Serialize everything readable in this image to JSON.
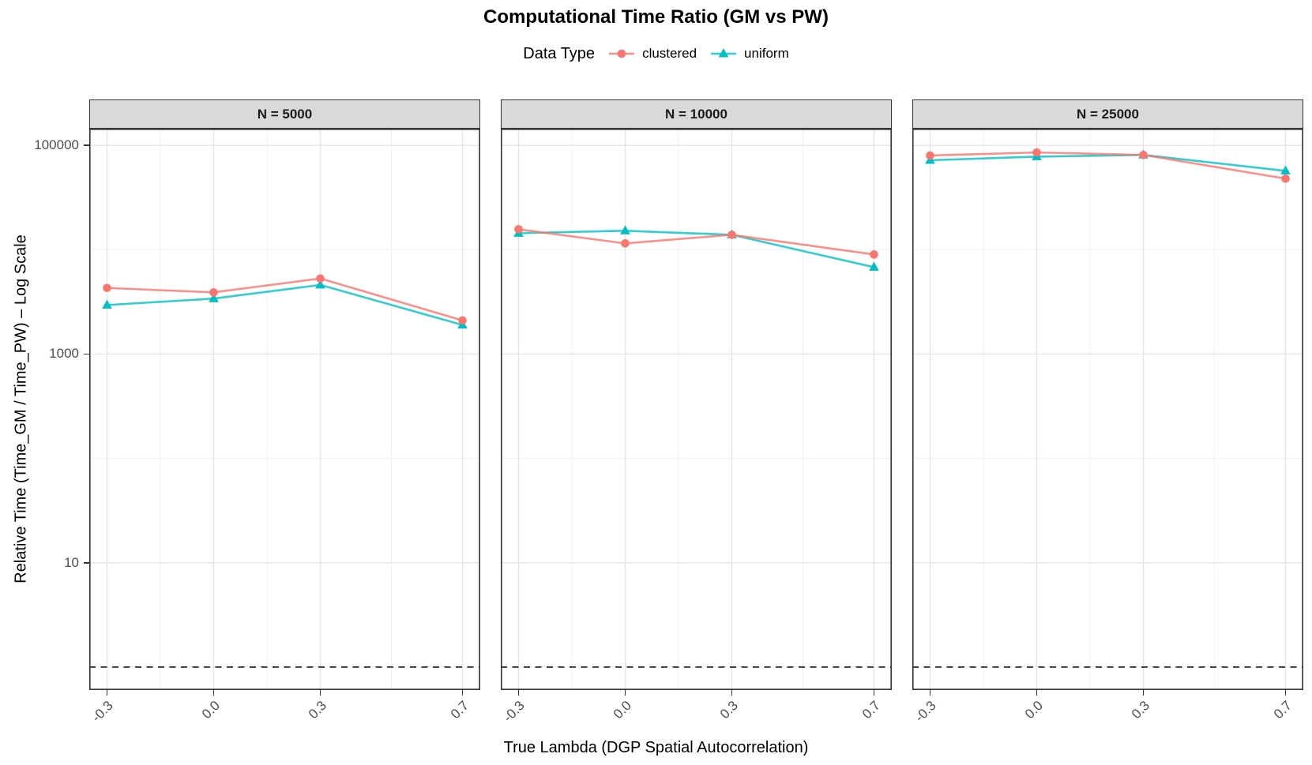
{
  "title": "Computational Time Ratio (GM vs PW)",
  "legend": {
    "title": "Data Type",
    "items": [
      {
        "label": "clustered",
        "color": "#F8766D",
        "marker": "circle"
      },
      {
        "label": "uniform",
        "color": "#00BFC4",
        "marker": "triangle"
      }
    ]
  },
  "x_axis": {
    "title": "True Lambda (DGP Spatial Autocorrelation)",
    "tick_labels": [
      "-0.3",
      "0.0",
      "0.3",
      "0.7"
    ],
    "tick_values": [
      -0.3,
      0.0,
      0.3,
      0.7
    ]
  },
  "y_axis": {
    "title": "Relative Time (Time_GM / Time_PW) – Log Scale",
    "tick_labels": [
      "100000",
      "1000",
      "10"
    ],
    "tick_values": [
      100000,
      1000,
      10
    ],
    "scale": "log10"
  },
  "colors": {
    "clustered": "#F8766D",
    "uniform": "#00BFC4",
    "strip_background": "#D9D9D9",
    "panel_border": "#333333",
    "grid_major": "#E5E5E5",
    "grid_minor": "#F0F0F0",
    "tick_text": "#4D4D4D",
    "reference_line": "#1A1A1A"
  },
  "chart_data": {
    "type": "line",
    "title": "Computational Time Ratio (GM vs PW)",
    "legend_title": "Data Type",
    "xlabel": "True Lambda (DGP Spatial Autocorrelation)",
    "ylabel": "Relative Time (Time_GM / Time_PW) – Log Scale",
    "x": [
      -0.3,
      0.0,
      0.3,
      0.7
    ],
    "x_tick_labels": [
      "-0.3",
      "0.0",
      "0.3",
      "0.7"
    ],
    "xlim": [
      -0.35,
      0.75
    ],
    "y_scale": "log10",
    "y_tick_values": [
      100000,
      1000,
      10
    ],
    "y_tick_labels": [
      "100000",
      "1000",
      "10"
    ],
    "ylim": [
      0.6,
      145000
    ],
    "grid": true,
    "legend_position": "top",
    "reference_line_y": 1,
    "facets": [
      {
        "label": "N = 5000",
        "series": [
          {
            "name": "clustered",
            "color": "#F8766D",
            "marker": "circle",
            "values": [
              4300,
              3900,
              5300,
              2100
            ]
          },
          {
            "name": "uniform",
            "color": "#00BFC4",
            "marker": "triangle",
            "values": [
              2950,
              3400,
              4600,
              1900
            ]
          }
        ]
      },
      {
        "label": "N = 10000",
        "series": [
          {
            "name": "clustered",
            "color": "#F8766D",
            "marker": "circle",
            "values": [
              15700,
              11500,
              13900,
              9000
            ]
          },
          {
            "name": "uniform",
            "color": "#00BFC4",
            "marker": "triangle",
            "values": [
              14400,
              15200,
              13900,
              6800
            ]
          }
        ]
      },
      {
        "label": "N = 25000",
        "series": [
          {
            "name": "clustered",
            "color": "#F8766D",
            "marker": "circle",
            "values": [
              80000,
              85500,
              81000,
              48000
            ]
          },
          {
            "name": "uniform",
            "color": "#00BFC4",
            "marker": "triangle",
            "values": [
              72000,
              78000,
              81000,
              57000
            ]
          }
        ]
      }
    ]
  }
}
